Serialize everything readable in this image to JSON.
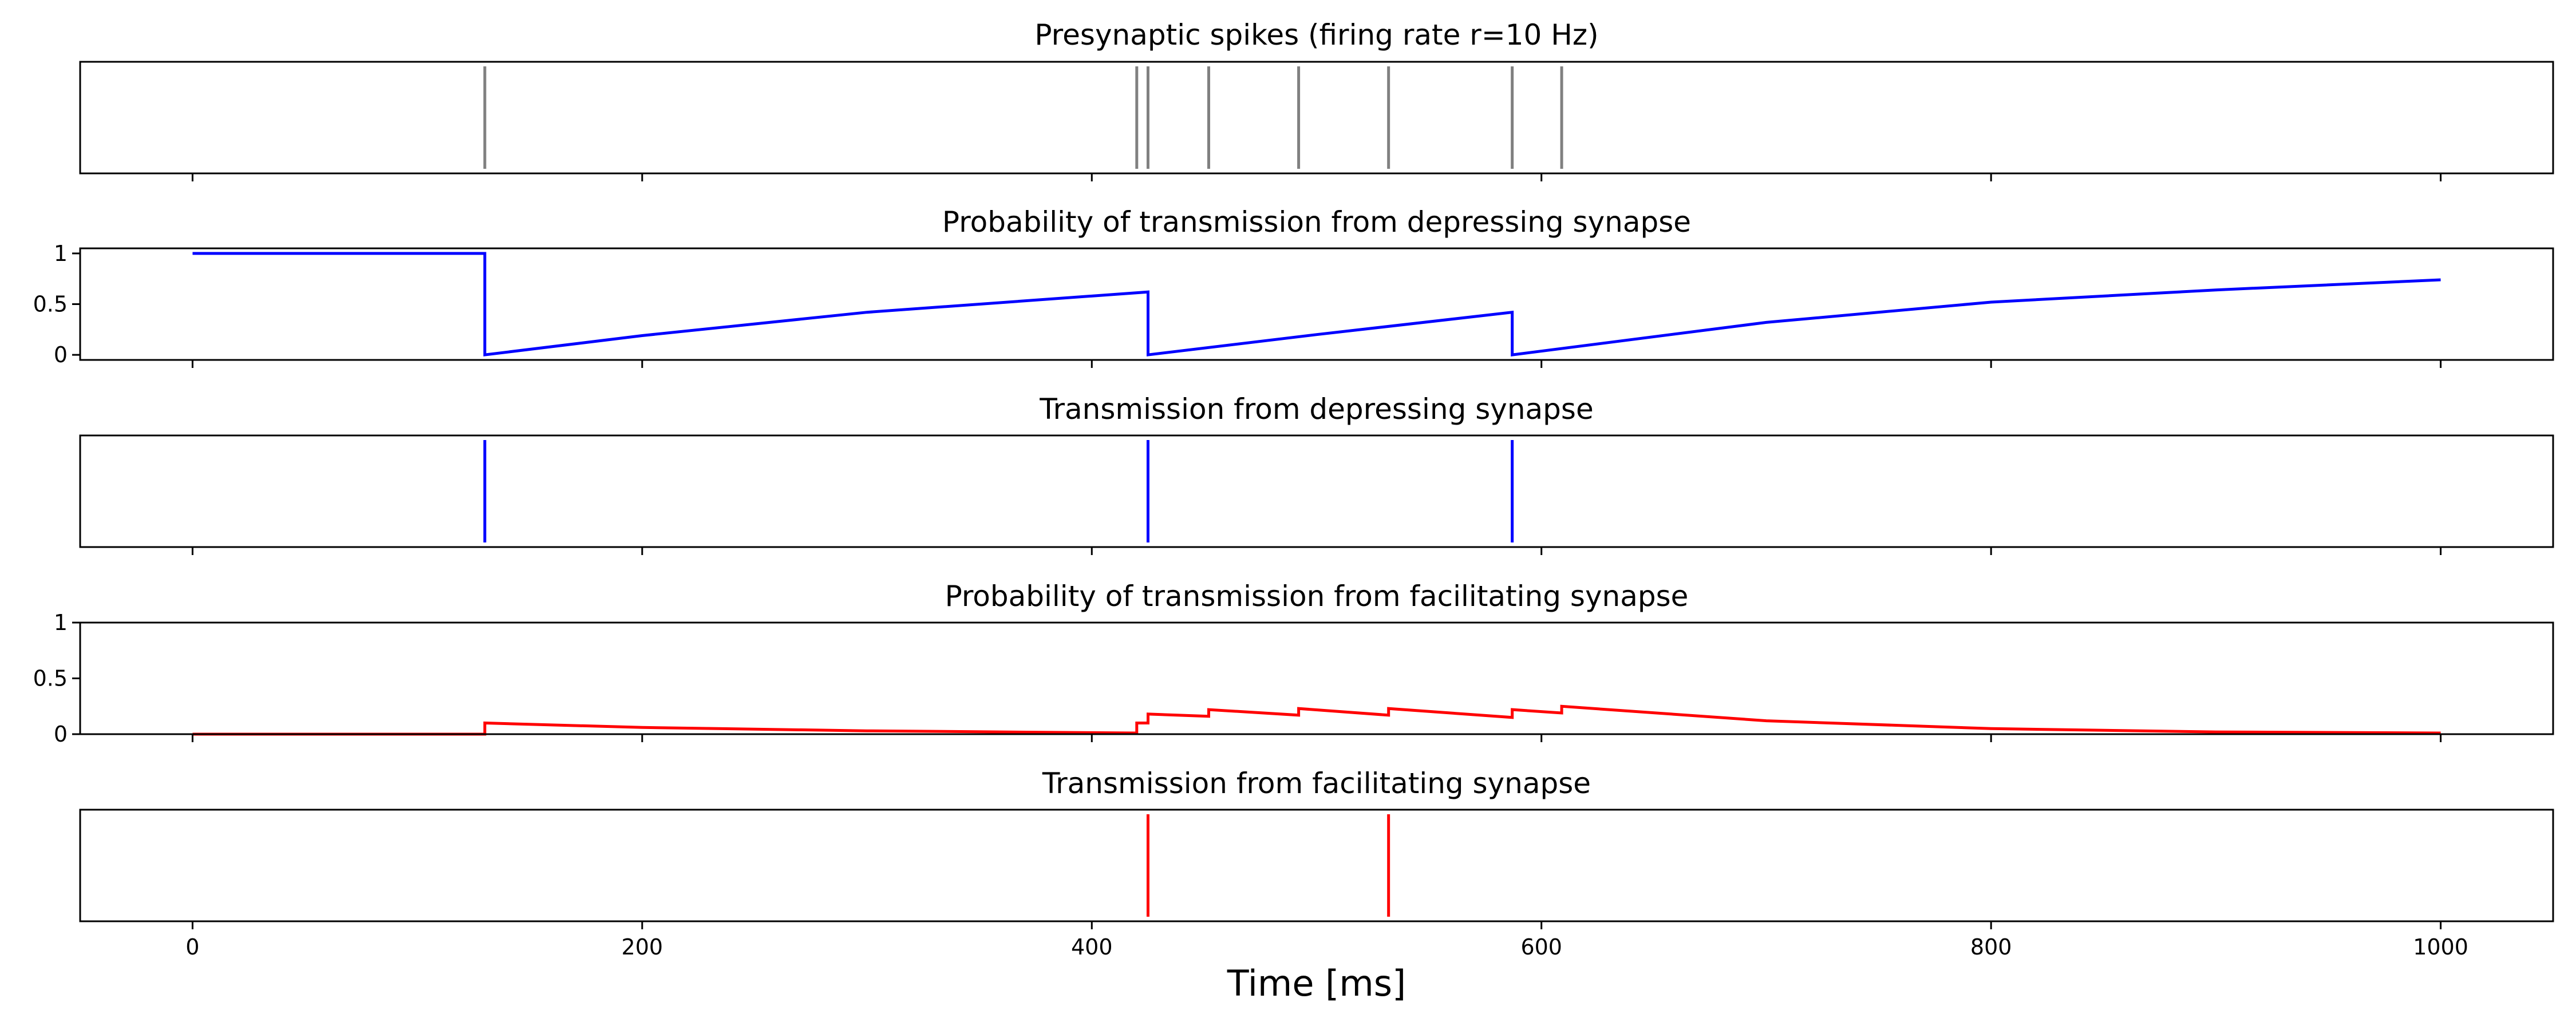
{
  "chart_data": [
    {
      "type": "event",
      "title": "Presynaptic spikes (firing rate r=10 Hz)",
      "events": [
        130,
        420,
        425,
        452,
        492,
        532,
        587,
        609
      ],
      "color": "#808080",
      "xlim": [
        -50,
        1050
      ]
    },
    {
      "type": "line",
      "title": "Probability of transmission from depressing synapse",
      "x": [
        0,
        130,
        130,
        200,
        300,
        425,
        425,
        500,
        587,
        587,
        700,
        800,
        900,
        1000
      ],
      "y": [
        1,
        1,
        0,
        0.19,
        0.42,
        0.62,
        0,
        0.2,
        0.42,
        0,
        0.32,
        0.52,
        0.64,
        0.74
      ],
      "yticks": [
        0,
        0.5,
        1
      ],
      "ytick_labels": [
        "0",
        "0.5",
        "1"
      ],
      "ylim": [
        -0.05,
        1.05
      ],
      "color": "#0000ff",
      "xlim": [
        -50,
        1050
      ]
    },
    {
      "type": "event",
      "title": "Transmission from depressing synapse",
      "events": [
        130,
        425,
        587
      ],
      "color": "#0000ff",
      "xlim": [
        -50,
        1050
      ]
    },
    {
      "type": "line",
      "title": "Probability of transmission from facilitating synapse",
      "x": [
        0,
        130,
        130,
        200,
        300,
        420,
        420,
        425,
        425,
        452,
        452,
        492,
        492,
        532,
        532,
        587,
        587,
        609,
        609,
        700,
        800,
        900,
        1000
      ],
      "y": [
        0,
        0,
        0.1,
        0.06,
        0.03,
        0.01,
        0.1,
        0.1,
        0.18,
        0.16,
        0.22,
        0.17,
        0.23,
        0.17,
        0.23,
        0.15,
        0.22,
        0.19,
        0.25,
        0.12,
        0.05,
        0.02,
        0.01
      ],
      "yticks": [
        0,
        0.5,
        1
      ],
      "ytick_labels": [
        "0",
        "0.5",
        "1"
      ],
      "ylim": [
        0,
        1
      ],
      "color": "#ff0000",
      "xlim": [
        -50,
        1050
      ]
    },
    {
      "type": "event",
      "title": "Transmission from facilitating synapse",
      "events": [
        425,
        532
      ],
      "color": "#ff0000",
      "xlim": [
        -50,
        1050
      ]
    }
  ],
  "x_axis": {
    "label": "Time [ms]",
    "ticks": [
      0,
      200,
      400,
      600,
      800,
      1000
    ],
    "tick_labels": [
      "0",
      "200",
      "400",
      "600",
      "800",
      "1000"
    ]
  }
}
